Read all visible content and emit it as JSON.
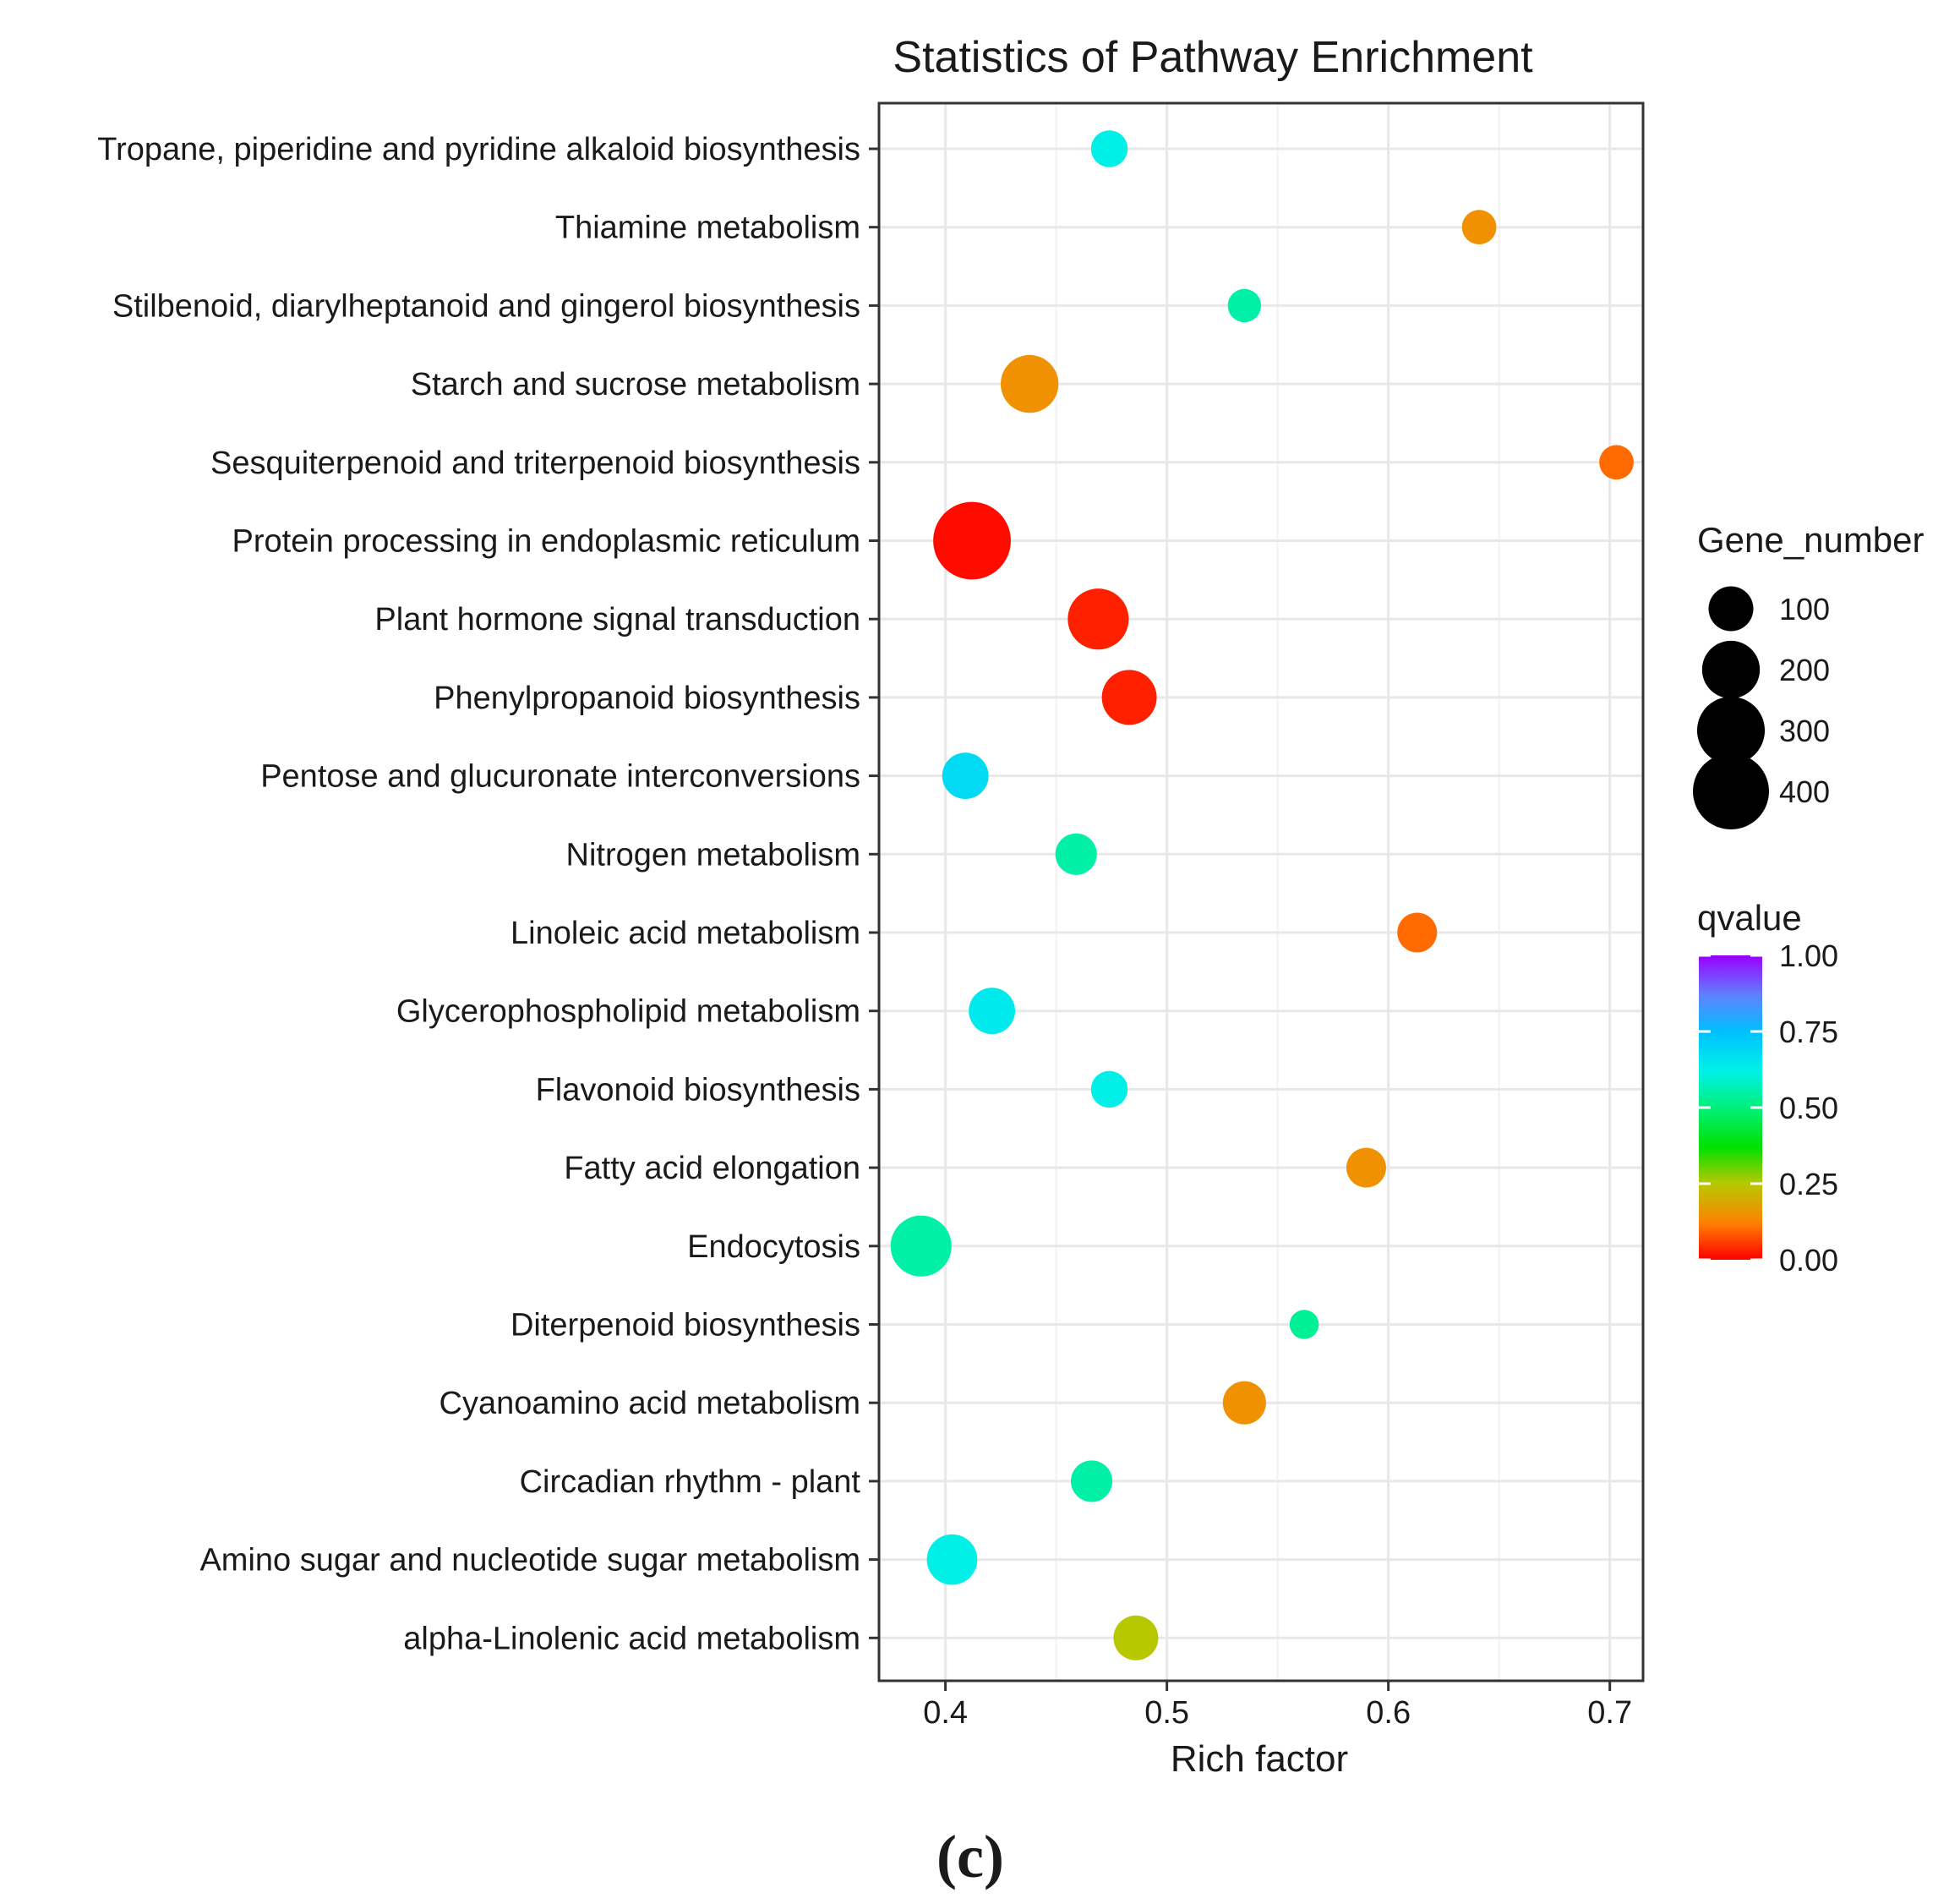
{
  "chart_data": {
    "type": "scatter",
    "title": "Statistics of Pathway Enrichment",
    "xlabel": "Rich factor",
    "ylabel": "",
    "xlim": [
      0.37,
      0.715
    ],
    "xticks": [
      0.4,
      0.5,
      0.6,
      0.7
    ],
    "xtick_labels": [
      "0.4",
      "0.5",
      "0.6",
      "0.7"
    ],
    "grid": true,
    "categories": [
      "Tropane, piperidine and pyridine alkaloid biosynthesis",
      "Thiamine metabolism",
      "Stilbenoid, diarylheptanoid and gingerol biosynthesis",
      "Starch and sucrose metabolism",
      "Sesquiterpenoid and triterpenoid biosynthesis",
      "Protein processing in endoplasmic reticulum",
      "Plant hormone signal transduction",
      "Phenylpropanoid biosynthesis",
      "Pentose and glucuronate interconversions",
      "Nitrogen metabolism",
      "Linoleic acid metabolism",
      "Glycerophospholipid metabolism",
      "Flavonoid biosynthesis",
      "Fatty acid elongation",
      "Endocytosis",
      "Diterpenoid biosynthesis",
      "Cyanoamino acid metabolism",
      "Circadian rhythm - plant",
      "Amino sugar and nucleotide sugar metabolism",
      "alpha-Linolenic acid metabolism"
    ],
    "points": [
      {
        "rich_factor": 0.474,
        "gene_number": 55,
        "qvalue": 0.62
      },
      {
        "rich_factor": 0.641,
        "gene_number": 45,
        "qvalue": 0.15
      },
      {
        "rich_factor": 0.535,
        "gene_number": 40,
        "qvalue": 0.55
      },
      {
        "rich_factor": 0.438,
        "gene_number": 200,
        "qvalue": 0.15
      },
      {
        "rich_factor": 0.703,
        "gene_number": 45,
        "qvalue": 0.1
      },
      {
        "rich_factor": 0.412,
        "gene_number": 420,
        "qvalue": 0.01
      },
      {
        "rich_factor": 0.469,
        "gene_number": 230,
        "qvalue": 0.03
      },
      {
        "rich_factor": 0.483,
        "gene_number": 175,
        "qvalue": 0.03
      },
      {
        "rich_factor": 0.409,
        "gene_number": 110,
        "qvalue": 0.68
      },
      {
        "rich_factor": 0.459,
        "gene_number": 80,
        "qvalue": 0.55
      },
      {
        "rich_factor": 0.613,
        "gene_number": 70,
        "qvalue": 0.1
      },
      {
        "rich_factor": 0.421,
        "gene_number": 110,
        "qvalue": 0.64
      },
      {
        "rich_factor": 0.474,
        "gene_number": 55,
        "qvalue": 0.62
      },
      {
        "rich_factor": 0.59,
        "gene_number": 70,
        "qvalue": 0.15
      },
      {
        "rich_factor": 0.389,
        "gene_number": 230,
        "qvalue": 0.55
      },
      {
        "rich_factor": 0.562,
        "gene_number": 25,
        "qvalue": 0.53
      },
      {
        "rich_factor": 0.535,
        "gene_number": 90,
        "qvalue": 0.15
      },
      {
        "rich_factor": 0.466,
        "gene_number": 80,
        "qvalue": 0.55
      },
      {
        "rich_factor": 0.403,
        "gene_number": 140,
        "qvalue": 0.62
      },
      {
        "rich_factor": 0.486,
        "gene_number": 100,
        "qvalue": 0.25
      }
    ],
    "size_legend": {
      "title": "Gene_number",
      "values": [
        100,
        200,
        300,
        400
      ],
      "labels": [
        "100",
        "200",
        "300",
        "400"
      ]
    },
    "color_legend": {
      "title": "qvalue",
      "labels": [
        "1.00",
        "0.75",
        "0.50",
        "0.25",
        "0.00"
      ],
      "values": [
        1.0,
        0.75,
        0.5,
        0.25,
        0.0
      ],
      "gradient_stops": [
        {
          "q": 0.0,
          "color": "#ff0000"
        },
        {
          "q": 0.12,
          "color": "#ff8000"
        },
        {
          "q": 0.25,
          "color": "#b8c800"
        },
        {
          "q": 0.37,
          "color": "#00e000"
        },
        {
          "q": 0.5,
          "color": "#00f07a"
        },
        {
          "q": 0.62,
          "color": "#00f0e8"
        },
        {
          "q": 0.75,
          "color": "#00c0ff"
        },
        {
          "q": 0.87,
          "color": "#6080ff"
        },
        {
          "q": 1.0,
          "color": "#9a00ff"
        }
      ]
    },
    "panel_label": "(c)"
  }
}
